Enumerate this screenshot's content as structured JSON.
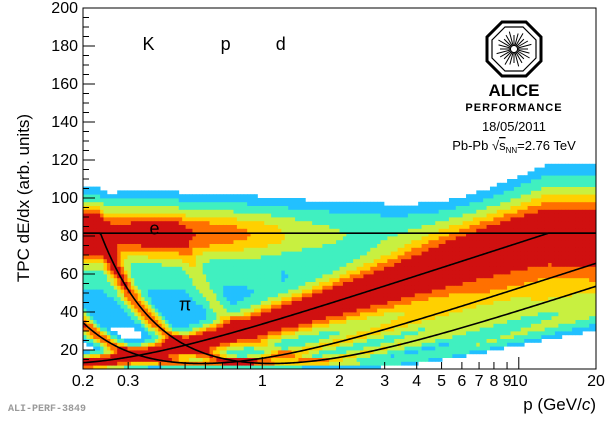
{
  "chart_data": {
    "type": "heatmap",
    "xlabel_prefix": "p (GeV/",
    "xlabel_unit": "c",
    "xlabel_suffix": ")",
    "ylabel": "TPC dE/dx (arb. units)",
    "x_scale": "log",
    "xlim": [
      0.2,
      20
    ],
    "ylim": [
      10,
      200
    ],
    "x_ticks": [
      {
        "value": 0.2,
        "label": "0.2"
      },
      {
        "value": 0.3,
        "label": "0.3"
      },
      {
        "value": 1,
        "label": "1"
      },
      {
        "value": 2,
        "label": "2"
      },
      {
        "value": 3,
        "label": "3"
      },
      {
        "value": 4,
        "label": "4"
      },
      {
        "value": 5,
        "label": "5"
      },
      {
        "value": 6,
        "label": "6"
      },
      {
        "value": 7,
        "label": "7"
      },
      {
        "value": 8,
        "label": "8"
      },
      {
        "value": 9,
        "label": "9"
      },
      {
        "value": 10,
        "label": "10"
      },
      {
        "value": 20,
        "label": "20"
      }
    ],
    "y_ticks": [
      20,
      40,
      60,
      80,
      100,
      120,
      140,
      160,
      180,
      200
    ],
    "particle_labels": [
      {
        "text": "K",
        "x": 0.36,
        "y": 181
      },
      {
        "text": "p",
        "x": 0.72,
        "y": 181
      },
      {
        "text": "d",
        "x": 1.18,
        "y": 181
      },
      {
        "text": "e",
        "x": 0.38,
        "y": 84
      },
      {
        "text": "π",
        "x": 0.5,
        "y": 44
      }
    ],
    "bands": [
      {
        "name": "e",
        "mass": 0.000511,
        "width": 5.5
      },
      {
        "name": "π",
        "mass": 0.1396,
        "width": 10
      },
      {
        "name": "K",
        "mass": 0.4937,
        "width": 6
      },
      {
        "name": "p",
        "mass": 0.9383,
        "width": 6
      },
      {
        "name": "d",
        "mass": 1.8756,
        "width": 6
      }
    ],
    "expected_curves": [
      "π",
      "K",
      "p",
      "e"
    ]
  },
  "logo": {
    "name": "ALICE",
    "subtitle": "PERFORMANCE",
    "date": "18/05/2011",
    "system_prefix": "Pb-Pb",
    "system_sqrt": "s",
    "system_sub": "NN",
    "system_suffix": "=2.76 TeV"
  },
  "footer": {
    "id": "ALI-PERF-3849"
  },
  "colors": {
    "frame": "#000000",
    "curves": "#000000"
  }
}
